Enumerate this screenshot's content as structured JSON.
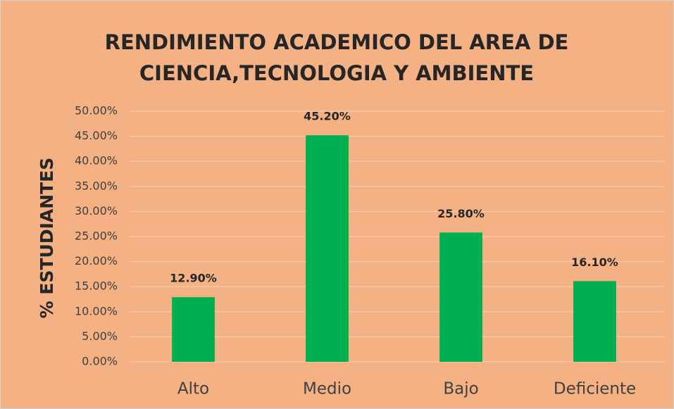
{
  "chart_data": {
    "type": "bar",
    "title": [
      "RENDIMIENTO ACADEMICO DEL AREA DE",
      "CIENCIA,TECNOLOGIA Y AMBIENTE"
    ],
    "y_label": "% ESTUDIANTES",
    "categories": [
      "Alto",
      "Medio",
      "Bajo",
      "Deficiente"
    ],
    "values": [
      12.9,
      45.2,
      25.8,
      16.1
    ],
    "value_labels": [
      "12.90%",
      "45.20%",
      "25.80%",
      "16.10%"
    ],
    "color": "#00b050",
    "ylim": [
      0,
      50
    ],
    "yticks": [
      {
        "value": 0,
        "label": "0.00%"
      },
      {
        "value": 5,
        "label": "5.00%"
      },
      {
        "value": 10,
        "label": "10.00%"
      },
      {
        "value": 15,
        "label": "15.00%"
      },
      {
        "value": 20,
        "label": "20.00%"
      },
      {
        "value": 25,
        "label": "25.00%"
      },
      {
        "value": 30,
        "label": "30.00%"
      },
      {
        "value": 35,
        "label": "35.00%"
      },
      {
        "value": 40,
        "label": "40.00%"
      },
      {
        "value": 45,
        "label": "45.00%"
      },
      {
        "value": 50,
        "label": "50.00%"
      }
    ],
    "grid": true
  }
}
